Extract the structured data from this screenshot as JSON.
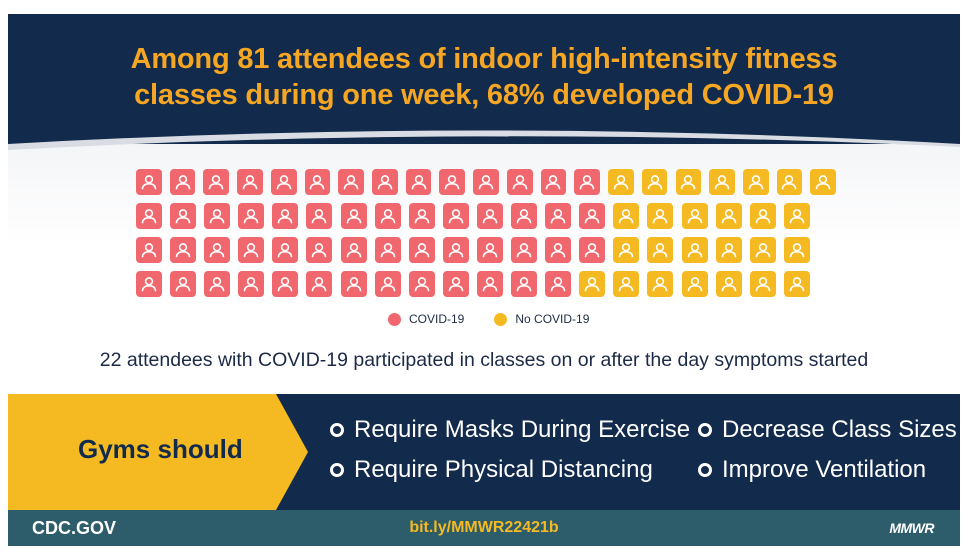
{
  "header": {
    "line1": "Among 81 attendees of indoor high-intensity fitness",
    "line2": "classes during one week, 68% developed COVID-19"
  },
  "waffle": {
    "rows": [
      {
        "covid": 14,
        "no_covid": 7
      },
      {
        "covid": 14,
        "no_covid": 6
      },
      {
        "covid": 14,
        "no_covid": 6
      },
      {
        "covid": 13,
        "no_covid": 7
      }
    ],
    "icon": "person-icon"
  },
  "legend": {
    "covid_label": "COVID-19",
    "no_covid_label": "No COVID-19"
  },
  "note": "22 attendees with COVID-19 participated in classes on or after the day symptoms started",
  "recommendations": {
    "heading": "Gyms should",
    "items": [
      "Require Masks During Exercise",
      "Require Physical Distancing",
      "Decrease Class Sizes",
      "Improve Ventilation"
    ]
  },
  "footer": {
    "site": "CDC.GOV",
    "link": "bit.ly/MMWR22421b",
    "logo": "MMWR"
  },
  "colors": {
    "navy": "#122a4c",
    "covid": "#f0676e",
    "no_covid": "#f5ba22",
    "title": "#f5a623",
    "footer": "#2d5d6a"
  }
}
